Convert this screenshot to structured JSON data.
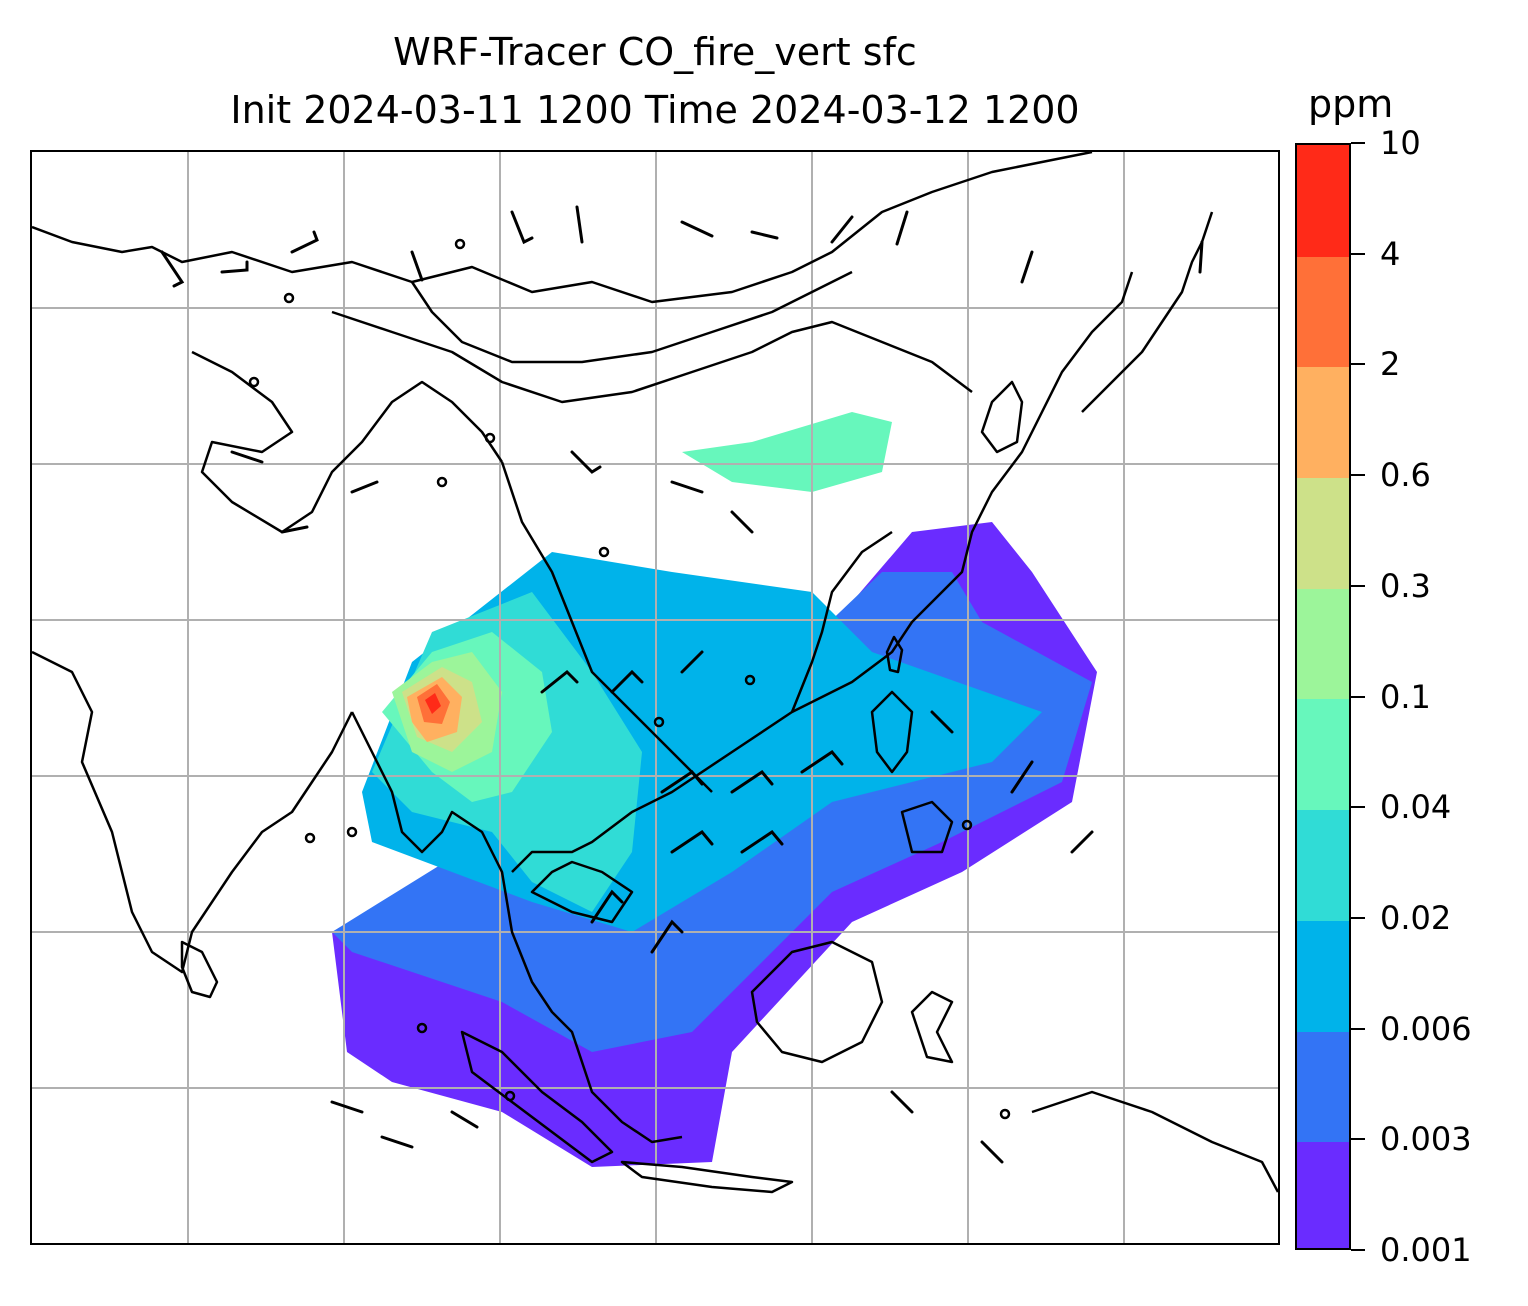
{
  "title": {
    "line1": "WRF-Tracer CO_fire_vert sfc",
    "line2": "Init 2024-03-11 1200 Time 2024-03-12 1200"
  },
  "colorbar": {
    "unit": "ppm",
    "levels": [
      "0.001",
      "0.003",
      "0.006",
      "0.02",
      "0.04",
      "0.1",
      "0.3",
      "0.6",
      "2",
      "4",
      "10"
    ],
    "colors": [
      "#6a2cff",
      "#3374f5",
      "#00b3ea",
      "#30dcd6",
      "#67f7bc",
      "#9cf59a",
      "#cde189",
      "#ffb060",
      "#ff7038",
      "#ff2a18"
    ]
  },
  "map": {
    "field": "CO_fire_vert surface tracer concentration",
    "gridlines": true,
    "overlays": [
      "coastlines",
      "country borders",
      "wind barbs",
      "calm-wind circles"
    ]
  }
}
